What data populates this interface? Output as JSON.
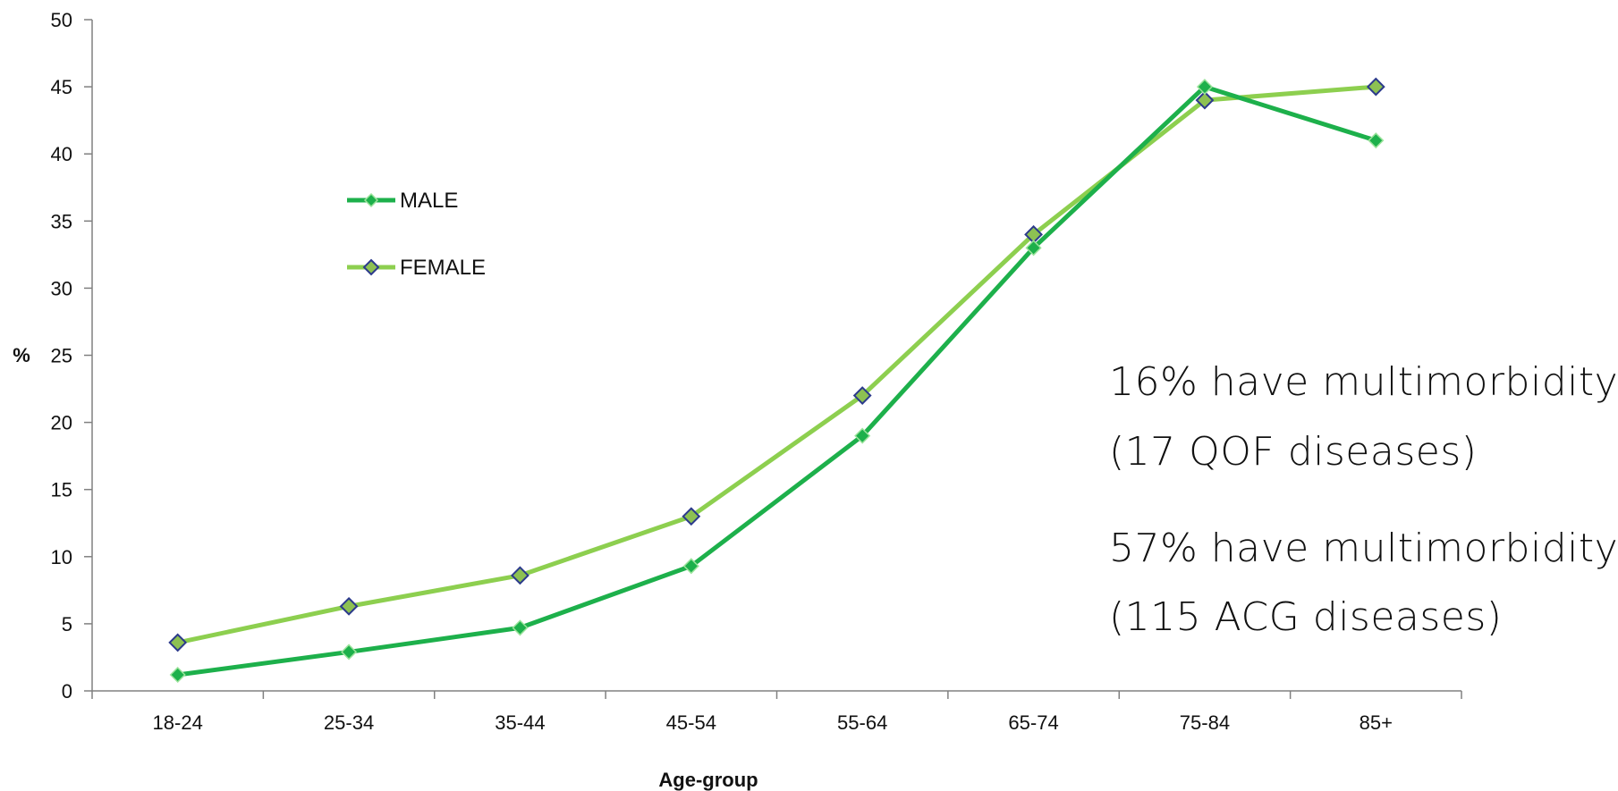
{
  "chart_data": {
    "type": "line",
    "categories": [
      "18-24",
      "25-34",
      "35-44",
      "45-54",
      "55-64",
      "65-74",
      "75-84",
      "85+"
    ],
    "series": [
      {
        "name": "MALE",
        "values": [
          1.2,
          2.9,
          4.7,
          9.3,
          19.0,
          33.0,
          45.0,
          41.0
        ],
        "color": "#1db04b",
        "marker_color": "#1db04b",
        "marker_edge": "#9be39b"
      },
      {
        "name": "FEMALE",
        "values": [
          3.6,
          6.3,
          8.6,
          13.0,
          22.0,
          34.0,
          44.0,
          45.0
        ],
        "color": "#8dcf4f",
        "marker_color": "#8dc152",
        "marker_edge": "#2c3a8c"
      }
    ],
    "xlabel": "Age-group",
    "ylabel": "%",
    "ylim": [
      0,
      50
    ],
    "yticks": [
      0,
      5,
      10,
      15,
      20,
      25,
      30,
      35,
      40,
      45,
      50
    ],
    "grid": false,
    "legend": "upper-left-inside",
    "annotations": [
      "16% have multimorbidity",
      "(17 QOF diseases)",
      "57% have multimorbidity",
      "(115 ACG diseases)"
    ]
  }
}
